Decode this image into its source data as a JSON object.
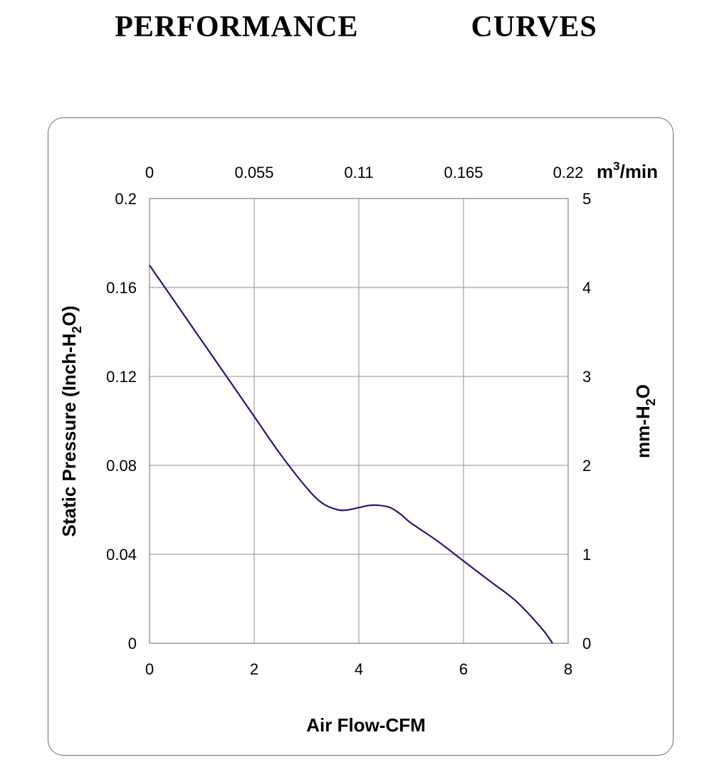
{
  "title": "PERFORMANCE    CURVES",
  "chart_data": {
    "type": "line",
    "xlabel": "Air Flow-CFM",
    "x_top_label": {
      "base": "m",
      "sup": "3",
      "rest": "/min"
    },
    "ylabel": {
      "pre": "Static Pressure (Inch-H",
      "sub": "2",
      "post": "O)"
    },
    "y_right_label": {
      "pre": "mm-H",
      "sub": "2",
      "post": "O"
    },
    "xlim": [
      0,
      8
    ],
    "ylim": [
      0,
      0.2
    ],
    "x_ticks": [
      "0",
      "2",
      "4",
      "6",
      "8"
    ],
    "x_ticks_top": [
      "0",
      "0.055",
      "0.11",
      "0.165",
      "0.22"
    ],
    "y_ticks": [
      "0",
      "0.04",
      "0.08",
      "0.12",
      "0.16",
      "0.2"
    ],
    "y_ticks_right": [
      "0",
      "1",
      "2",
      "3",
      "4",
      "5"
    ],
    "grid": true,
    "series": [
      {
        "color": "#1a1a80",
        "x": [
          0,
          0.5,
          1.0,
          1.5,
          2.0,
          2.5,
          3.0,
          3.3,
          3.6,
          3.8,
          4.0,
          4.2,
          4.4,
          4.6,
          4.8,
          5.0,
          5.5,
          6.0,
          6.5,
          7.0,
          7.5,
          7.7
        ],
        "y": [
          0.17,
          0.153,
          0.136,
          0.119,
          0.102,
          0.085,
          0.07,
          0.063,
          0.06,
          0.06,
          0.061,
          0.062,
          0.062,
          0.061,
          0.058,
          0.054,
          0.046,
          0.037,
          0.028,
          0.019,
          0.0065,
          0.0
        ]
      }
    ]
  }
}
